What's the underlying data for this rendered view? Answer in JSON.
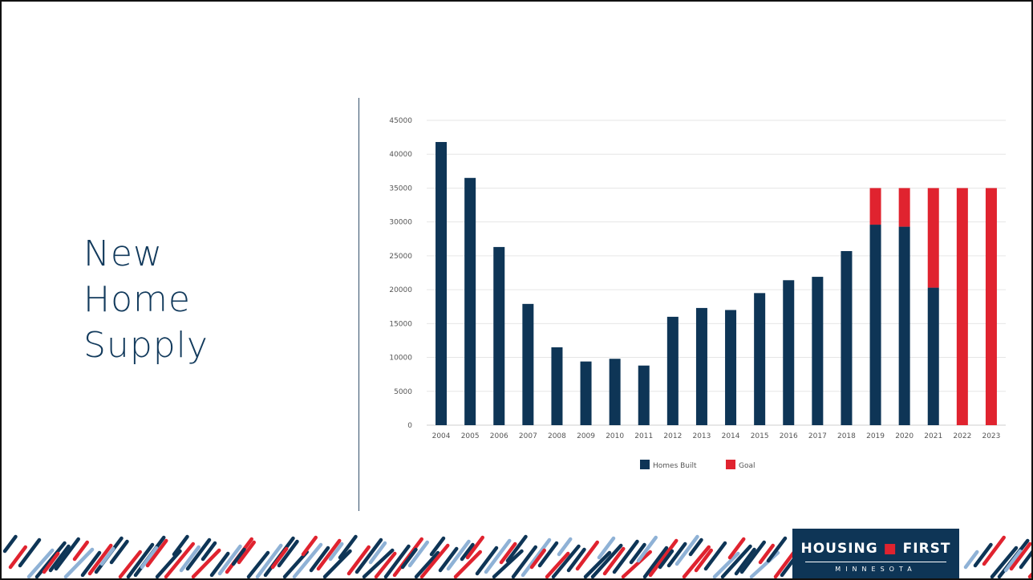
{
  "slide": {
    "title_lines": [
      "New",
      "Home",
      "Supply"
    ]
  },
  "logo": {
    "word1": "HOUSING",
    "word2": "FIRST",
    "subtitle": "MINNESOTA"
  },
  "colors": {
    "navy": "#0e3556",
    "red": "#e0232f",
    "title_text": "#123a5c",
    "axis_text": "#555555",
    "gridline": "#e6e6e6"
  },
  "chart_data": {
    "type": "bar",
    "stacked": true,
    "categories": [
      "2004",
      "2005",
      "2006",
      "2007",
      "2008",
      "2009",
      "2010",
      "2011",
      "2012",
      "2013",
      "2014",
      "2015",
      "2016",
      "2017",
      "2018",
      "2019",
      "2020",
      "2021",
      "2022",
      "2023"
    ],
    "series": [
      {
        "name": "Homes Built",
        "color": "#0e3556",
        "values": [
          41800,
          36500,
          26300,
          17900,
          11500,
          9400,
          9800,
          8800,
          16000,
          17300,
          17000,
          19500,
          21400,
          21900,
          25700,
          29600,
          29300,
          20300,
          0,
          0
        ]
      },
      {
        "name": "Goal",
        "color": "#e0232f",
        "values": [
          0,
          0,
          0,
          0,
          0,
          0,
          0,
          0,
          0,
          0,
          0,
          0,
          0,
          0,
          0,
          5400,
          5700,
          14700,
          35000,
          35000
        ]
      }
    ],
    "yticks": [
      0,
      5000,
      10000,
      15000,
      20000,
      25000,
      30000,
      35000,
      40000,
      45000
    ],
    "ylim": [
      0,
      45000
    ],
    "grid": true,
    "legend_position": "bottom"
  }
}
